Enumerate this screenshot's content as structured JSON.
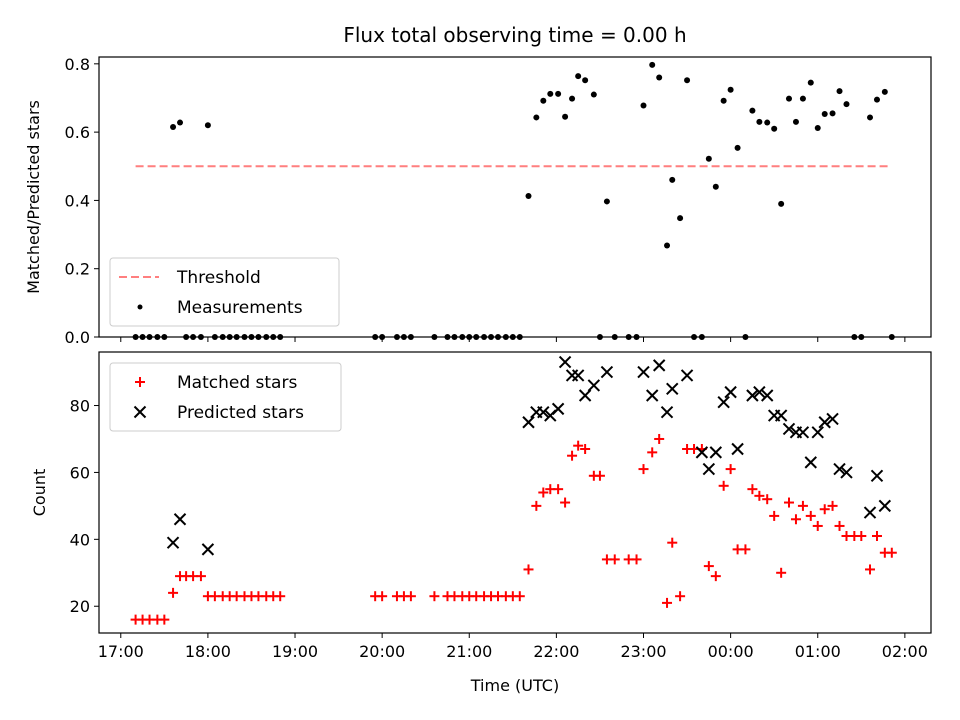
{
  "chart_data": [
    {
      "type": "scatter",
      "title": "Flux total observing time = 0.00 h",
      "xlabel": "",
      "ylabel": "Matched/Predicted stars",
      "ylim": [
        0,
        0.82
      ],
      "y_ticks": [
        0.0,
        0.2,
        0.4,
        0.6,
        0.8
      ],
      "x_ticks": [
        "17:00",
        "18:00",
        "19:00",
        "20:00",
        "21:00",
        "22:00",
        "23:00",
        "00:00",
        "01:00",
        "02:00"
      ],
      "x_tick_labels_visible": false,
      "legend_position": "lower-left",
      "series": [
        {
          "name": "Threshold",
          "kind": "dashed-line",
          "color": "#ff7f7f",
          "x": [
            17.17,
            25.83
          ],
          "values": [
            0.5,
            0.5
          ]
        },
        {
          "name": "Measurements",
          "kind": "dots",
          "color": "#000000",
          "x": [
            17.17,
            17.25,
            17.33,
            17.42,
            17.5,
            17.6,
            17.68,
            17.75,
            17.83,
            17.92,
            18.0,
            18.08,
            18.17,
            18.25,
            18.33,
            18.42,
            18.5,
            18.58,
            18.67,
            18.75,
            18.83,
            19.92,
            20.0,
            20.17,
            20.25,
            20.33,
            20.6,
            20.75,
            20.83,
            20.92,
            21.0,
            21.08,
            21.17,
            21.25,
            21.33,
            21.42,
            21.5,
            21.58,
            21.68,
            21.77,
            21.85,
            21.93,
            22.02,
            22.1,
            22.18,
            22.25,
            22.33,
            22.43,
            22.5,
            22.58,
            22.67,
            22.83,
            22.92,
            23.0,
            23.1,
            23.18,
            23.27,
            23.33,
            23.42,
            23.5,
            23.58,
            23.67,
            23.75,
            23.83,
            23.92,
            24.0,
            24.08,
            24.17,
            24.25,
            24.33,
            24.42,
            24.5,
            24.58,
            24.67,
            24.75,
            24.83,
            24.92,
            25.0,
            25.08,
            25.17,
            25.25,
            25.33,
            25.42,
            25.5,
            25.6,
            25.68,
            25.77,
            25.85
          ],
          "values": [
            0,
            0,
            0,
            0,
            0,
            0.615,
            0.628,
            0,
            0,
            0,
            0.62,
            0,
            0,
            0,
            0,
            0,
            0,
            0,
            0,
            0,
            0,
            0,
            0,
            0,
            0,
            0,
            0,
            0,
            0,
            0,
            0,
            0,
            0,
            0,
            0,
            0,
            0,
            0,
            0.413,
            0.643,
            0.692,
            0.712,
            0.712,
            0.645,
            0.698,
            0.764,
            0.752,
            0.71,
            0,
            0.397,
            0,
            0,
            0,
            0.678,
            0.797,
            0.76,
            0.268,
            0.46,
            0.348,
            0.752,
            0,
            0,
            0.522,
            0.44,
            0.692,
            0.724,
            0.554,
            0,
            0.663,
            0.63,
            0.628,
            0.61,
            0.39,
            0.698,
            0.63,
            0.698,
            0.745,
            0.612,
            0.653,
            0.655,
            0.72,
            0.682,
            0,
            0,
            0.643,
            0.695,
            0.718,
            0
          ]
        }
      ]
    },
    {
      "type": "scatter",
      "title": "",
      "xlabel": "Time (UTC)",
      "ylabel": "Count",
      "ylim": [
        12,
        96
      ],
      "y_ticks": [
        20,
        40,
        60,
        80
      ],
      "x_ticks": [
        "17:00",
        "18:00",
        "19:00",
        "20:00",
        "21:00",
        "22:00",
        "23:00",
        "00:00",
        "01:00",
        "02:00"
      ],
      "legend_position": "upper-left",
      "series": [
        {
          "name": "Matched stars",
          "kind": "plus",
          "color": "#ff0000",
          "x": [
            17.17,
            17.25,
            17.33,
            17.42,
            17.5,
            17.6,
            17.68,
            17.75,
            17.83,
            17.92,
            18.0,
            18.08,
            18.17,
            18.25,
            18.33,
            18.42,
            18.5,
            18.58,
            18.67,
            18.75,
            18.83,
            19.92,
            20.0,
            20.17,
            20.25,
            20.33,
            20.6,
            20.75,
            20.83,
            20.92,
            21.0,
            21.08,
            21.17,
            21.25,
            21.33,
            21.42,
            21.5,
            21.58,
            21.68,
            21.77,
            21.85,
            21.93,
            22.02,
            22.1,
            22.18,
            22.25,
            22.33,
            22.43,
            22.5,
            22.58,
            22.67,
            22.83,
            22.92,
            23.0,
            23.1,
            23.18,
            23.27,
            23.33,
            23.42,
            23.5,
            23.58,
            23.67,
            23.75,
            23.83,
            23.92,
            24.0,
            24.08,
            24.17,
            24.25,
            24.33,
            24.42,
            24.5,
            24.58,
            24.67,
            24.75,
            24.83,
            24.92,
            25.0,
            25.08,
            25.17,
            25.25,
            25.33,
            25.42,
            25.5,
            25.6,
            25.68,
            25.77,
            25.85
          ],
          "values": [
            16,
            16,
            16,
            16,
            16,
            24,
            29,
            29,
            29,
            29,
            23,
            23,
            23,
            23,
            23,
            23,
            23,
            23,
            23,
            23,
            23,
            23,
            23,
            23,
            23,
            23,
            23,
            23,
            23,
            23,
            23,
            23,
            23,
            23,
            23,
            23,
            23,
            23,
            31,
            50,
            54,
            55,
            55,
            51,
            65,
            68,
            67,
            59,
            59,
            34,
            34,
            34,
            34,
            61,
            66,
            70,
            21,
            39,
            23,
            67,
            67,
            67,
            32,
            29,
            56,
            61,
            37,
            37,
            55,
            53,
            52,
            47,
            30,
            51,
            46,
            50,
            47,
            44,
            49,
            50,
            44,
            41,
            41,
            41,
            31,
            41,
            36,
            36
          ]
        },
        {
          "name": "Predicted stars",
          "kind": "cross",
          "color": "#000000",
          "x": [
            17.6,
            17.68,
            18.0,
            21.68,
            21.77,
            21.85,
            21.93,
            22.02,
            22.1,
            22.18,
            22.25,
            22.33,
            22.43,
            22.58,
            23.0,
            23.1,
            23.18,
            23.27,
            23.33,
            23.5,
            23.67,
            23.75,
            23.83,
            23.92,
            24.0,
            24.08,
            24.25,
            24.33,
            24.42,
            24.5,
            24.58,
            24.67,
            24.75,
            24.83,
            24.92,
            25.0,
            25.08,
            25.17,
            25.25,
            25.33,
            25.6,
            25.68,
            25.77
          ],
          "values": [
            39,
            46,
            37,
            75,
            78,
            78,
            77,
            79,
            93,
            89,
            89,
            83,
            86,
            90,
            90,
            83,
            92,
            78,
            85,
            89,
            66,
            61,
            66,
            81,
            84,
            67,
            83,
            84,
            83,
            77,
            77,
            73,
            72,
            72,
            63,
            72,
            75,
            76,
            61,
            60,
            48,
            59,
            50
          ]
        }
      ]
    }
  ]
}
